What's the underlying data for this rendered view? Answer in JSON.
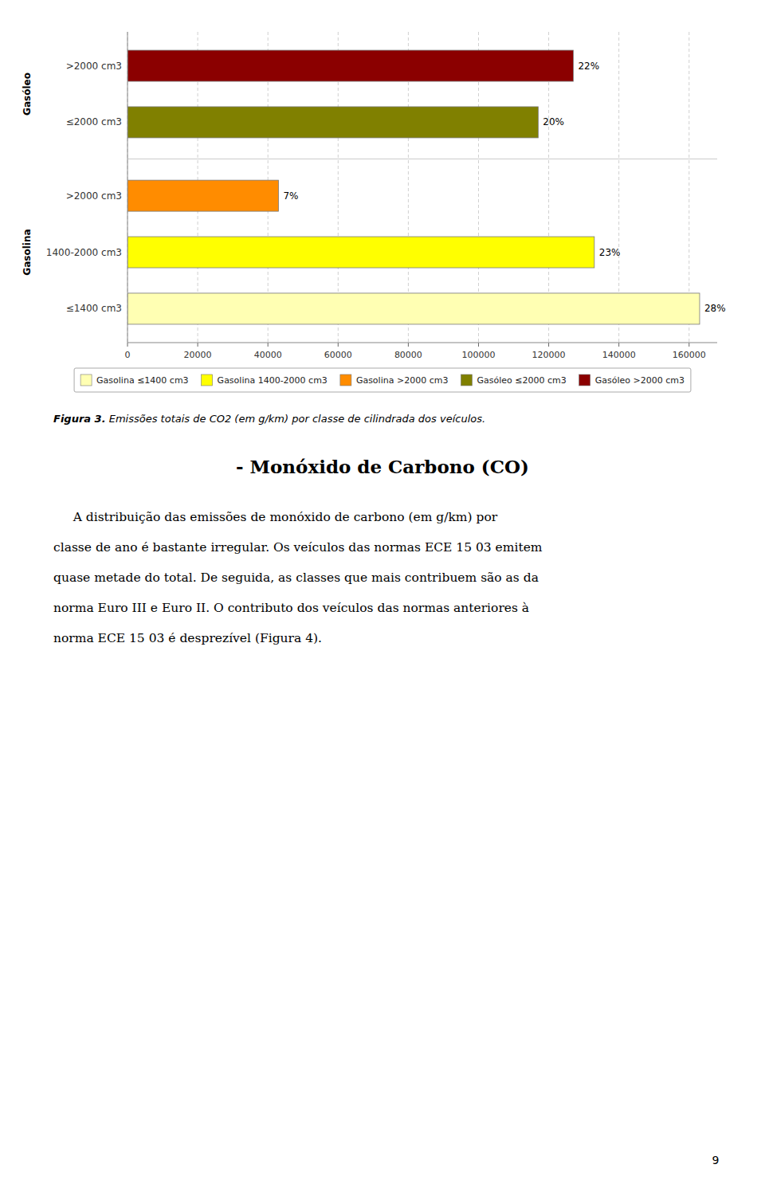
{
  "chart_data": {
    "type": "bar",
    "orientation": "horizontal",
    "categories": [
      "≤1400 cm3",
      "1400-2000 cm3",
      ">2000 cm3",
      "≤2000 cm3",
      ">2000 cm3"
    ],
    "values": [
      163000,
      133000,
      43000,
      117000,
      127000
    ],
    "colors": [
      "#FFFFB3",
      "#FFFF00",
      "#FF8C00",
      "#808000",
      "#8B0000"
    ],
    "percentages": [
      {
        "value": 28,
        "label": "28%"
      },
      {
        "value": 23,
        "label": "23%"
      },
      {
        "value": 7,
        "label": "7%"
      },
      {
        "value": 20,
        "label": "20%"
      },
      {
        "value": 22,
        "label": "22%"
      }
    ],
    "groups": [
      {
        "label": "Gasolina",
        "size": 3
      },
      {
        "label": "Gasóleo",
        "size": 2
      }
    ],
    "xlim": [
      0,
      168000
    ],
    "xticks": [
      0,
      20000,
      40000,
      60000,
      80000,
      100000,
      120000,
      140000,
      160000
    ],
    "grid": true,
    "legend": "bottom",
    "legend_entries": [
      "Gasolina ≤1400 cm3",
      "Gasolina 1400-2000 cm3",
      "Gasolina >2000 cm3",
      "Gasóleo ≤2000 cm3",
      "Gasóleo >2000 cm3"
    ]
  },
  "caption_label": "Figura 3.",
  "caption": " Emissões totais de CO2 (em g/km) por classe de cilindrada dos veículos.",
  "section_title": "- Monóxido de Carbono (CO)",
  "body_lines": [
    "     A distribuição das emissões de monóxido de carbono (em g/km) por",
    "classe de ano é bastante irregular. Os veículos das normas ECE 15 03 emitem",
    "quase metade do total. De seguida, as classes que mais contribuem são as da",
    "norma Euro III e Euro II. O contributo dos veículos das normas anteriores à",
    "norma ECE 15 03 é desprezível (Figura 4)."
  ],
  "page_number": "9"
}
